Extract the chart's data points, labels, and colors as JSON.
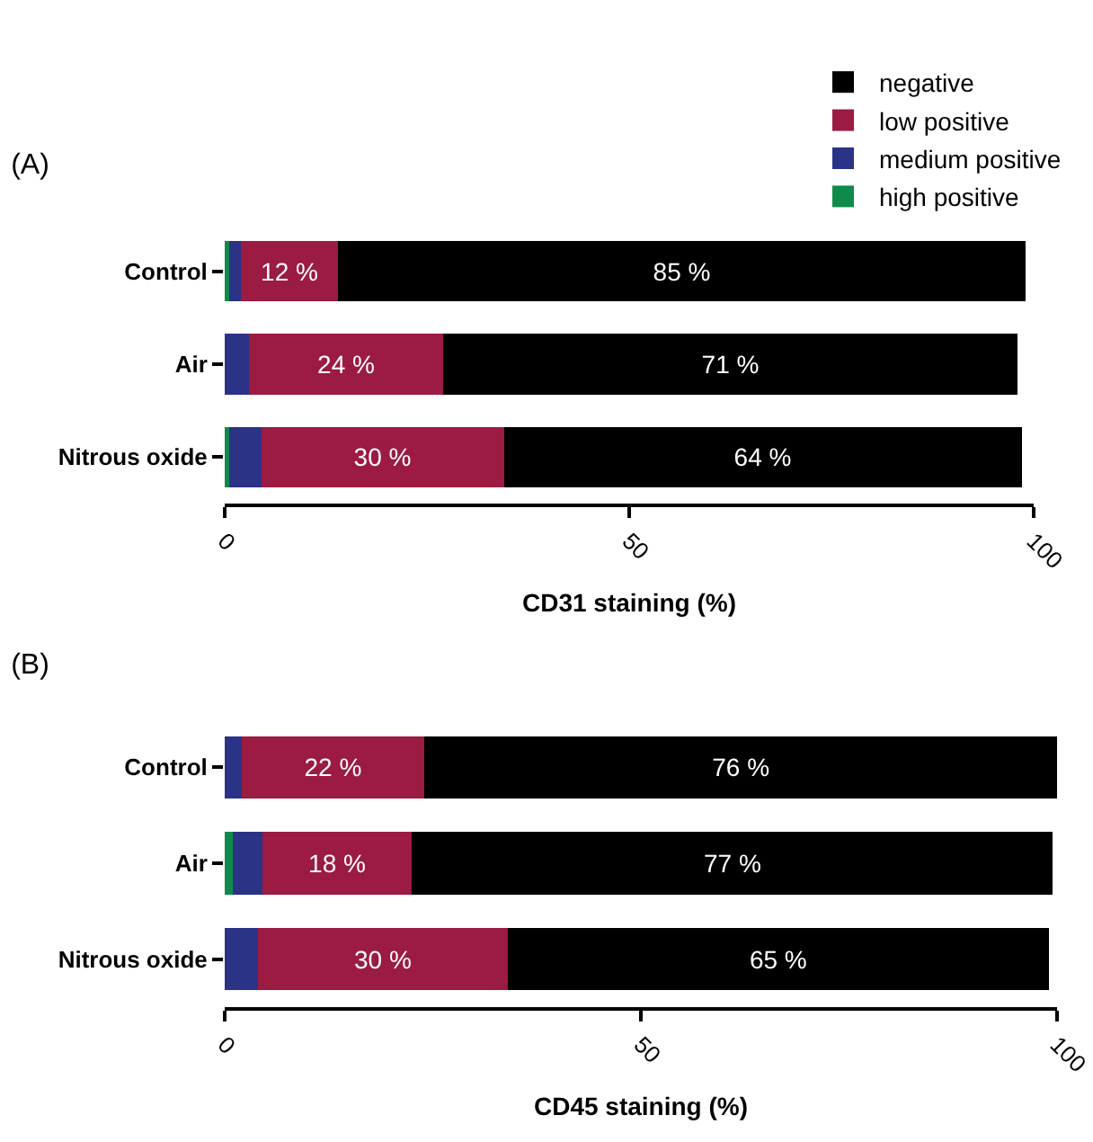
{
  "chart_data": [
    {
      "type": "bar",
      "title": "(A)",
      "orientation": "horizontal",
      "stacked": true,
      "categories": [
        "Control",
        "Air",
        "Nitrous oxide"
      ],
      "xlabel": "CD31 staining (%)",
      "xlim": [
        0,
        100
      ],
      "xticks": [
        0,
        50,
        100
      ],
      "grid": false,
      "legend": "top right",
      "series": [
        {
          "name": "high positive",
          "color": "#108a4a",
          "values": [
            0.5,
            0,
            0.5
          ]
        },
        {
          "name": "medium positive",
          "color": "#2b3386",
          "values": [
            1.5,
            3,
            4
          ]
        },
        {
          "name": "low positive",
          "color": "#9b1b42",
          "values": [
            12,
            24,
            30
          ],
          "value_labels": [
            "12 %",
            "24 %",
            "30 %"
          ]
        },
        {
          "name": "negative",
          "color": "#000000",
          "values": [
            85,
            71,
            64
          ],
          "value_labels": [
            "85 %",
            "71 %",
            "64 %"
          ]
        }
      ]
    },
    {
      "type": "bar",
      "title": "(B)",
      "orientation": "horizontal",
      "stacked": true,
      "categories": [
        "Control",
        "Air",
        "Nitrous oxide"
      ],
      "xlabel": "CD45 staining (%)",
      "xlim": [
        0,
        100
      ],
      "xticks": [
        0,
        50,
        100
      ],
      "grid": false,
      "legend": false,
      "series": [
        {
          "color": "#108a4a",
          "values": [
            0,
            1,
            0
          ]
        },
        {
          "color": "#2b3386",
          "values": [
            2,
            3.5,
            4
          ]
        },
        {
          "color": "#9b1b42",
          "values": [
            22,
            18,
            30
          ],
          "value_labels": [
            "22 %",
            "18 %",
            "30 %"
          ]
        },
        {
          "color": "#000000",
          "values": [
            76,
            77,
            65
          ],
          "value_labels": [
            "76 %",
            "77 %",
            "65 %"
          ]
        }
      ]
    }
  ]
}
